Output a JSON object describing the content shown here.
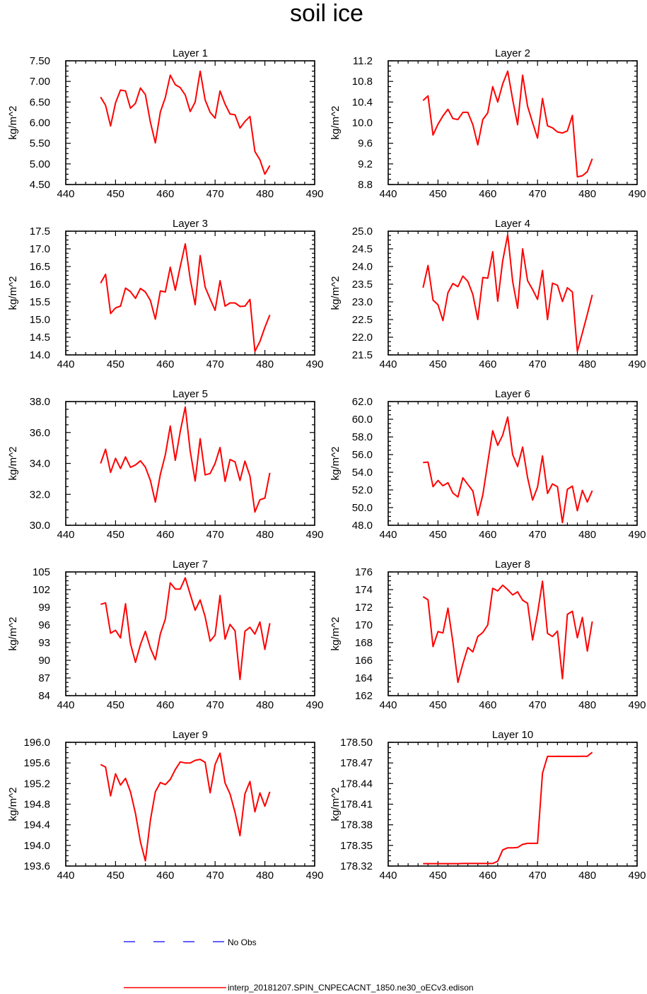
{
  "figure": {
    "title": "soil ice",
    "legend": {
      "no_obs_label": "No Obs",
      "model_label": "interp_20181207.SPIN_CNPECACNT_1850.ne30_oECv3.edison",
      "no_obs_color": "#0000ff",
      "model_color": "#ff0000"
    }
  },
  "chart_data": [
    {
      "type": "line",
      "title": "Layer 1",
      "ylabel": "kg/m^2",
      "xlim": [
        440,
        490
      ],
      "ylim": [
        4.5,
        7.5
      ],
      "xticks": [
        "440",
        "450",
        "460",
        "470",
        "480",
        "490"
      ],
      "yticks": [
        "4.50",
        "5.00",
        "5.50",
        "6.00",
        "6.50",
        "7.00",
        "7.50"
      ],
      "x": [
        447,
        448,
        449,
        450,
        451,
        452,
        453,
        454,
        455,
        456,
        457,
        458,
        459,
        460,
        461,
        462,
        463,
        464,
        465,
        466,
        467,
        468,
        469,
        470,
        471,
        472,
        473,
        474,
        475,
        476,
        477,
        478,
        479,
        480,
        481
      ],
      "values": [
        6.62,
        6.42,
        5.92,
        6.48,
        6.79,
        6.77,
        6.35,
        6.47,
        6.84,
        6.68,
        6.01,
        5.51,
        6.26,
        6.61,
        7.15,
        6.92,
        6.85,
        6.67,
        6.27,
        6.5,
        7.25,
        6.55,
        6.25,
        6.11,
        6.77,
        6.45,
        6.21,
        6.19,
        5.87,
        6.03,
        6.15,
        5.3,
        5.1,
        4.75,
        4.96
      ]
    },
    {
      "type": "line",
      "title": "Layer 2",
      "ylabel": "kg/m^2",
      "xlim": [
        440,
        490
      ],
      "ylim": [
        8.8,
        11.2
      ],
      "xticks": [
        "440",
        "450",
        "460",
        "470",
        "480",
        "490"
      ],
      "yticks": [
        "8.8",
        "9.2",
        "9.6",
        "10.0",
        "10.4",
        "10.8",
        "11.2"
      ],
      "x": [
        447,
        448,
        449,
        450,
        451,
        452,
        453,
        454,
        455,
        456,
        457,
        458,
        459,
        460,
        461,
        462,
        463,
        464,
        465,
        466,
        467,
        468,
        469,
        470,
        471,
        472,
        473,
        474,
        475,
        476,
        477,
        478,
        479,
        480,
        481
      ],
      "values": [
        10.43,
        10.52,
        9.76,
        9.97,
        10.13,
        10.26,
        10.08,
        10.06,
        10.2,
        10.2,
        9.96,
        9.57,
        10.06,
        10.19,
        10.7,
        10.4,
        10.75,
        11.0,
        10.45,
        9.96,
        10.92,
        10.32,
        10.0,
        9.7,
        10.47,
        9.94,
        9.9,
        9.82,
        9.8,
        9.84,
        10.14,
        8.95,
        8.97,
        9.05,
        9.3
      ]
    },
    {
      "type": "line",
      "title": "Layer 3",
      "ylabel": "kg/m^2",
      "xlim": [
        440,
        490
      ],
      "ylim": [
        14.0,
        17.5
      ],
      "xticks": [
        "440",
        "450",
        "460",
        "470",
        "480",
        "490"
      ],
      "yticks": [
        "14.0",
        "14.5",
        "15.0",
        "15.5",
        "16.0",
        "16.5",
        "17.0",
        "17.5"
      ],
      "x": [
        447,
        448,
        449,
        450,
        451,
        452,
        453,
        454,
        455,
        456,
        457,
        458,
        459,
        460,
        461,
        462,
        463,
        464,
        465,
        466,
        467,
        468,
        469,
        470,
        471,
        472,
        473,
        474,
        475,
        476,
        477,
        478,
        479,
        480,
        481
      ],
      "values": [
        16.03,
        16.28,
        15.17,
        15.33,
        15.38,
        15.89,
        15.79,
        15.6,
        15.88,
        15.78,
        15.54,
        15.01,
        15.81,
        15.78,
        16.48,
        15.83,
        16.5,
        17.14,
        16.15,
        15.42,
        16.81,
        15.92,
        15.58,
        15.26,
        16.1,
        15.38,
        15.47,
        15.47,
        15.37,
        15.38,
        15.57,
        14.1,
        14.38,
        14.78,
        15.13
      ]
    },
    {
      "type": "line",
      "title": "Layer 4",
      "ylabel": "kg/m^2",
      "xlim": [
        440,
        490
      ],
      "ylim": [
        21.5,
        25.0
      ],
      "xticks": [
        "440",
        "450",
        "460",
        "470",
        "480",
        "490"
      ],
      "yticks": [
        "21.5",
        "22.0",
        "22.5",
        "23.0",
        "23.5",
        "24.0",
        "24.5",
        "25.0"
      ],
      "x": [
        447,
        448,
        449,
        450,
        451,
        452,
        453,
        454,
        455,
        456,
        457,
        458,
        459,
        460,
        461,
        462,
        463,
        464,
        465,
        466,
        467,
        468,
        469,
        470,
        471,
        472,
        473,
        474,
        475,
        476,
        477,
        478,
        479,
        480,
        481
      ],
      "values": [
        23.4,
        24.03,
        23.05,
        22.92,
        22.47,
        23.26,
        23.52,
        23.43,
        23.73,
        23.58,
        23.21,
        22.5,
        23.69,
        23.67,
        24.42,
        23.02,
        24.16,
        24.9,
        23.58,
        22.82,
        24.5,
        23.6,
        23.35,
        23.07,
        23.89,
        22.5,
        23.53,
        23.47,
        23.01,
        23.4,
        23.28,
        21.6,
        22.12,
        22.65,
        23.2
      ]
    },
    {
      "type": "line",
      "title": "Layer 5",
      "ylabel": "kg/m^2",
      "xlim": [
        440,
        490
      ],
      "ylim": [
        30.0,
        38.0
      ],
      "xticks": [
        "440",
        "450",
        "460",
        "470",
        "480",
        "490"
      ],
      "yticks": [
        "30.0",
        "32.0",
        "34.0",
        "36.0",
        "38.0"
      ],
      "x": [
        447,
        448,
        449,
        450,
        451,
        452,
        453,
        454,
        455,
        456,
        457,
        458,
        459,
        460,
        461,
        462,
        463,
        464,
        465,
        466,
        467,
        468,
        469,
        470,
        471,
        472,
        473,
        474,
        475,
        476,
        477,
        478,
        479,
        480,
        481
      ],
      "values": [
        34.0,
        34.92,
        33.42,
        34.33,
        33.67,
        34.42,
        33.75,
        33.9,
        34.17,
        33.76,
        32.9,
        31.5,
        33.3,
        34.55,
        36.42,
        34.2,
        36.06,
        37.65,
        34.8,
        32.86,
        35.6,
        33.26,
        33.35,
        34.0,
        35.03,
        32.84,
        34.25,
        34.1,
        32.9,
        34.15,
        33.18,
        30.86,
        31.65,
        31.76,
        33.39
      ]
    },
    {
      "type": "line",
      "title": "Layer 6",
      "ylabel": "kg/m^2",
      "xlim": [
        440,
        490
      ],
      "ylim": [
        48.0,
        62.0
      ],
      "xticks": [
        "440",
        "450",
        "460",
        "470",
        "480",
        "490"
      ],
      "yticks": [
        "48.0",
        "50.0",
        "52.0",
        "54.0",
        "56.0",
        "58.0",
        "60.0",
        "62.0"
      ],
      "x": [
        447,
        448,
        449,
        450,
        451,
        452,
        453,
        454,
        455,
        456,
        457,
        458,
        459,
        460,
        461,
        462,
        463,
        464,
        465,
        466,
        467,
        468,
        469,
        470,
        471,
        472,
        473,
        474,
        475,
        476,
        477,
        478,
        479,
        480,
        481
      ],
      "values": [
        55.1,
        55.15,
        52.37,
        53.07,
        52.47,
        52.82,
        51.65,
        51.2,
        53.38,
        52.62,
        51.88,
        49.12,
        51.44,
        55.1,
        58.7,
        57.05,
        58.2,
        60.25,
        56.0,
        54.65,
        56.85,
        53.4,
        50.85,
        52.32,
        55.85,
        51.6,
        52.68,
        52.36,
        48.3,
        52.07,
        52.43,
        49.65,
        51.95,
        50.63,
        51.92
      ]
    },
    {
      "type": "line",
      "title": "Layer 7",
      "ylabel": "kg/m^2",
      "xlim": [
        440,
        490
      ],
      "ylim": [
        84,
        105
      ],
      "xticks": [
        "440",
        "450",
        "460",
        "470",
        "480",
        "490"
      ],
      "yticks": [
        "84",
        "87",
        "90",
        "93",
        "96",
        "99",
        "102",
        "105"
      ],
      "x": [
        447,
        448,
        449,
        450,
        451,
        452,
        453,
        454,
        455,
        456,
        457,
        458,
        459,
        460,
        461,
        462,
        463,
        464,
        465,
        466,
        467,
        468,
        469,
        470,
        471,
        472,
        473,
        474,
        475,
        476,
        477,
        478,
        479,
        480,
        481
      ],
      "values": [
        99.5,
        99.75,
        94.6,
        95.1,
        93.8,
        99.6,
        92.85,
        89.65,
        92.67,
        94.92,
        92.06,
        90.1,
        94.5,
        97.0,
        103.15,
        102.1,
        102.1,
        104.0,
        101.2,
        98.5,
        100.25,
        97.4,
        93.25,
        94.3,
        101.0,
        93.6,
        96.1,
        95.0,
        86.75,
        94.95,
        95.6,
        94.45,
        96.5,
        91.85,
        96.3
      ]
    },
    {
      "type": "line",
      "title": "Layer 8",
      "ylabel": "kg/m^2",
      "xlim": [
        440,
        490
      ],
      "ylim": [
        162,
        176
      ],
      "xticks": [
        "440",
        "450",
        "460",
        "470",
        "480",
        "490"
      ],
      "yticks": [
        "162",
        "164",
        "166",
        "168",
        "170",
        "172",
        "174",
        "176"
      ],
      "x": [
        447,
        448,
        449,
        450,
        451,
        452,
        453,
        454,
        455,
        456,
        457,
        458,
        459,
        460,
        461,
        462,
        463,
        464,
        465,
        466,
        467,
        468,
        469,
        470,
        471,
        472,
        473,
        474,
        475,
        476,
        477,
        478,
        479,
        480,
        481
      ],
      "values": [
        173.2,
        172.85,
        167.55,
        169.25,
        169.1,
        171.9,
        168.05,
        163.5,
        165.6,
        167.45,
        166.95,
        168.7,
        169.15,
        170.0,
        174.15,
        173.85,
        174.5,
        174.0,
        173.4,
        173.75,
        172.8,
        172.45,
        168.3,
        171.3,
        174.95,
        169.05,
        168.7,
        169.3,
        163.92,
        171.2,
        171.55,
        168.55,
        170.85,
        167.05,
        170.4
      ]
    },
    {
      "type": "line",
      "title": "Layer 9",
      "ylabel": "kg/m^2",
      "xlim": [
        440,
        490
      ],
      "ylim": [
        193.6,
        196.0
      ],
      "xticks": [
        "440",
        "450",
        "460",
        "470",
        "480",
        "490"
      ],
      "yticks": [
        "193.6",
        "194.0",
        "194.4",
        "194.8",
        "195.2",
        "195.6",
        "196.0"
      ],
      "x": [
        447,
        448,
        449,
        450,
        451,
        452,
        453,
        454,
        455,
        456,
        457,
        458,
        459,
        460,
        461,
        462,
        463,
        464,
        465,
        466,
        467,
        468,
        469,
        470,
        471,
        472,
        473,
        474,
        475,
        476,
        477,
        478,
        479,
        480,
        481
      ],
      "values": [
        195.57,
        195.52,
        194.96,
        195.39,
        195.17,
        195.3,
        195.04,
        194.62,
        194.07,
        193.7,
        194.49,
        195.04,
        195.22,
        195.18,
        195.28,
        195.47,
        195.62,
        195.6,
        195.6,
        195.65,
        195.67,
        195.61,
        195.02,
        195.57,
        195.79,
        195.21,
        195.0,
        194.64,
        194.19,
        195.0,
        195.24,
        194.65,
        195.02,
        194.76,
        195.04
      ]
    },
    {
      "type": "line",
      "title": "Layer 10",
      "ylabel": "kg/m^2",
      "xlim": [
        440,
        490
      ],
      "ylim": [
        178.32,
        178.5
      ],
      "xticks": [
        "440",
        "450",
        "460",
        "470",
        "480",
        "490"
      ],
      "yticks": [
        "178.32",
        "178.35",
        "178.38",
        "178.41",
        "178.44",
        "178.47",
        "178.50"
      ],
      "x": [
        447,
        448,
        449,
        450,
        451,
        452,
        453,
        454,
        455,
        456,
        457,
        458,
        459,
        460,
        461,
        462,
        463,
        464,
        465,
        466,
        467,
        468,
        469,
        470,
        471,
        472,
        473,
        474,
        475,
        476,
        477,
        478,
        479,
        480,
        481
      ],
      "values": [
        178.3235,
        178.3235,
        178.3235,
        178.3235,
        178.3235,
        178.3235,
        178.3235,
        178.3235,
        178.3237,
        178.3237,
        178.3237,
        178.3237,
        178.3237,
        178.3237,
        178.3237,
        178.327,
        178.3435,
        178.3465,
        178.3465,
        178.347,
        178.3515,
        178.353,
        178.353,
        178.353,
        178.455,
        178.4795,
        178.4795,
        178.4795,
        178.4795,
        178.4795,
        178.4795,
        178.4795,
        178.4797,
        178.4797,
        178.4855
      ]
    }
  ]
}
